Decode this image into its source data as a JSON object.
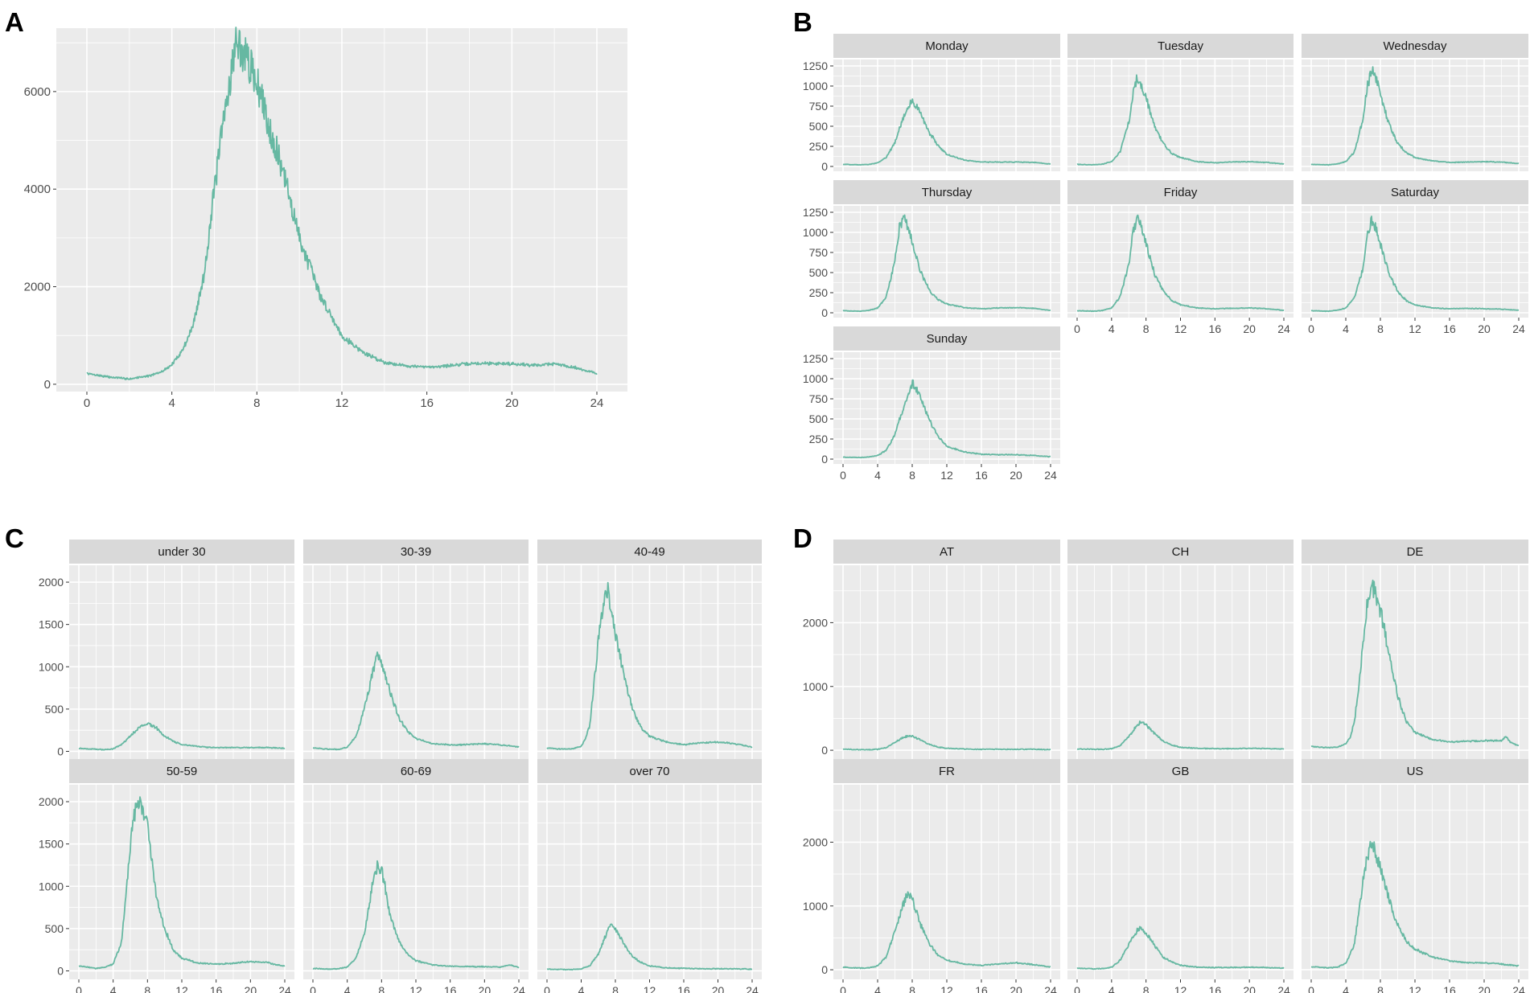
{
  "colors": {
    "line": "#66B8A2",
    "panel_bg": "#EBEBEB",
    "strip_bg": "#D9D9D9",
    "grid": "#FFFFFF",
    "tick_text": "#4D4D4D"
  },
  "chart_data": [
    {
      "id": "A",
      "type": "line",
      "label": "A",
      "x_range": [
        0,
        24
      ],
      "ylim": [
        -150,
        7300
      ],
      "x_ticks": [
        0,
        4,
        8,
        12,
        16,
        20,
        24
      ],
      "y_ticks": [
        0,
        2000,
        4000,
        6000
      ],
      "x_tick_labels": [
        "0",
        "4",
        "8",
        "12",
        "16",
        "20",
        "24"
      ],
      "y_tick_labels": [
        "0",
        "2000",
        "4000",
        "6000"
      ],
      "facets": [
        {
          "title": "",
          "x": [
            0,
            1,
            2,
            3,
            3.5,
            4,
            4.5,
            5,
            5.5,
            6,
            6.5,
            7,
            7.5,
            8,
            8.5,
            9,
            9.5,
            10,
            11,
            12,
            13,
            14,
            15,
            16,
            17,
            18,
            19,
            20,
            21,
            22,
            23,
            24
          ],
          "y": [
            220,
            150,
            110,
            180,
            250,
            400,
            700,
            1200,
            2200,
            4000,
            5600,
            7000,
            6700,
            6200,
            5400,
            4700,
            3900,
            3000,
            1800,
            1000,
            650,
            450,
            380,
            350,
            380,
            420,
            430,
            420,
            390,
            420,
            340,
            220
          ]
        }
      ]
    },
    {
      "id": "B",
      "type": "line",
      "label": "B",
      "x_range": [
        0,
        24
      ],
      "ylim": [
        -60,
        1330
      ],
      "x_ticks": [
        0,
        4,
        8,
        12,
        16,
        20,
        24
      ],
      "y_ticks": [
        0,
        250,
        500,
        750,
        1000,
        1250
      ],
      "x_tick_labels": [
        "0",
        "4",
        "8",
        "12",
        "16",
        "20",
        "24"
      ],
      "y_tick_labels": [
        "0",
        "250",
        "500",
        "750",
        "1000",
        "1250"
      ],
      "facets": [
        {
          "title": "Monday",
          "x": [
            0,
            2,
            3,
            4,
            5,
            6,
            7,
            8,
            9,
            10,
            11,
            12,
            14,
            16,
            18,
            20,
            22,
            24
          ],
          "y": [
            25,
            20,
            25,
            45,
            110,
            300,
            620,
            830,
            650,
            420,
            260,
            150,
            80,
            55,
            55,
            55,
            50,
            30
          ]
        },
        {
          "title": "Tuesday",
          "x": [
            0,
            2,
            3,
            4,
            5,
            6,
            6.5,
            7,
            7.5,
            8,
            9,
            10,
            11,
            12,
            14,
            16,
            18,
            20,
            22,
            24
          ],
          "y": [
            25,
            20,
            30,
            60,
            180,
            550,
            900,
            1120,
            1000,
            850,
            500,
            280,
            160,
            110,
            60,
            45,
            55,
            60,
            50,
            30
          ]
        },
        {
          "title": "Wednesday",
          "x": [
            0,
            2,
            3,
            4,
            5,
            6,
            6.5,
            7,
            7.5,
            8,
            9,
            10,
            11,
            12,
            14,
            16,
            18,
            20,
            22,
            24
          ],
          "y": [
            25,
            20,
            30,
            60,
            180,
            600,
            1000,
            1200,
            1100,
            900,
            520,
            290,
            170,
            110,
            70,
            50,
            55,
            60,
            55,
            35
          ]
        },
        {
          "title": "Thursday",
          "x": [
            0,
            2,
            3,
            4,
            5,
            6,
            6.5,
            7,
            7.5,
            8,
            9,
            10,
            11,
            12,
            14,
            16,
            18,
            20,
            22,
            24
          ],
          "y": [
            25,
            20,
            30,
            60,
            200,
            650,
            1050,
            1200,
            1080,
            880,
            500,
            280,
            160,
            110,
            65,
            50,
            60,
            65,
            55,
            30
          ]
        },
        {
          "title": "Friday",
          "x": [
            0,
            2,
            3,
            4,
            5,
            6,
            6.5,
            7,
            7.5,
            8,
            9,
            10,
            11,
            12,
            14,
            16,
            18,
            20,
            22,
            24
          ],
          "y": [
            25,
            20,
            30,
            60,
            200,
            600,
            1000,
            1180,
            1050,
            870,
            480,
            270,
            150,
            100,
            60,
            50,
            55,
            60,
            50,
            30
          ]
        },
        {
          "title": "Saturday",
          "x": [
            0,
            2,
            3,
            4,
            5,
            6,
            6.5,
            7,
            7.5,
            8,
            9,
            10,
            11,
            12,
            14,
            16,
            18,
            20,
            22,
            24
          ],
          "y": [
            25,
            20,
            30,
            60,
            190,
            560,
            950,
            1150,
            1050,
            860,
            480,
            270,
            150,
            100,
            60,
            50,
            55,
            50,
            45,
            30
          ]
        },
        {
          "title": "Sunday",
          "x": [
            0,
            2,
            3,
            4,
            5,
            6,
            7,
            8,
            8.5,
            9,
            10,
            11,
            12,
            14,
            16,
            18,
            20,
            22,
            24
          ],
          "y": [
            25,
            20,
            25,
            45,
            110,
            300,
            650,
            940,
            880,
            760,
            480,
            280,
            160,
            90,
            60,
            55,
            55,
            45,
            30
          ]
        }
      ]
    },
    {
      "id": "C",
      "type": "line",
      "label": "C",
      "x_range": [
        0,
        24
      ],
      "ylim": [
        -100,
        2200
      ],
      "x_ticks": [
        0,
        4,
        8,
        12,
        16,
        20,
        24
      ],
      "y_ticks": [
        0,
        500,
        1000,
        1500,
        2000
      ],
      "x_tick_labels": [
        "0",
        "4",
        "8",
        "12",
        "16",
        "20",
        "24"
      ],
      "y_tick_labels": [
        "0",
        "500",
        "1000",
        "1500",
        "2000"
      ],
      "facets": [
        {
          "title": "under 30",
          "x": [
            0,
            2,
            3,
            4,
            5,
            6,
            7,
            8,
            9,
            10,
            11,
            12,
            14,
            16,
            18,
            20,
            22,
            24
          ],
          "y": [
            35,
            25,
            20,
            30,
            80,
            180,
            280,
            340,
            280,
            180,
            120,
            80,
            55,
            45,
            45,
            45,
            45,
            35
          ]
        },
        {
          "title": "30-39",
          "x": [
            0,
            2,
            3,
            4,
            5,
            6,
            7,
            7.5,
            8,
            9,
            10,
            11,
            12,
            14,
            16,
            18,
            20,
            22,
            24
          ],
          "y": [
            40,
            25,
            25,
            50,
            170,
            500,
            950,
            1120,
            1050,
            700,
            400,
            240,
            150,
            90,
            75,
            80,
            90,
            75,
            55
          ]
        },
        {
          "title": "40-49",
          "x": [
            0,
            2,
            3,
            4,
            4.5,
            5,
            5.5,
            6,
            6.5,
            7,
            7.5,
            8,
            9,
            10,
            11,
            12,
            14,
            16,
            18,
            20,
            22,
            24
          ],
          "y": [
            40,
            25,
            30,
            60,
            150,
            300,
            800,
            1300,
            1700,
            1950,
            1700,
            1400,
            900,
            500,
            280,
            180,
            110,
            80,
            100,
            110,
            90,
            50
          ]
        },
        {
          "title": "50-59",
          "x": [
            0,
            2,
            3,
            4,
            5,
            5.5,
            6,
            6.5,
            7,
            7.5,
            8,
            8.5,
            9,
            10,
            11,
            12,
            14,
            16,
            18,
            20,
            22,
            23,
            24
          ],
          "y": [
            60,
            30,
            40,
            80,
            350,
            900,
            1500,
            1850,
            2000,
            1900,
            1700,
            1300,
            900,
            500,
            250,
            150,
            90,
            80,
            90,
            110,
            100,
            70,
            60
          ]
        },
        {
          "title": "60-69",
          "x": [
            0,
            2,
            3,
            4,
            5,
            6,
            6.5,
            7,
            7.5,
            8,
            8.5,
            9,
            10,
            11,
            12,
            14,
            16,
            18,
            20,
            22,
            23,
            24
          ],
          "y": [
            30,
            20,
            25,
            45,
            150,
            450,
            750,
            1050,
            1230,
            1200,
            950,
            650,
            350,
            200,
            120,
            70,
            55,
            50,
            50,
            45,
            70,
            40
          ]
        },
        {
          "title": "over 70",
          "x": [
            0,
            2,
            3,
            4,
            5,
            6,
            7,
            7.5,
            8,
            9,
            10,
            11,
            12,
            14,
            16,
            18,
            20,
            22,
            24
          ],
          "y": [
            20,
            15,
            15,
            25,
            60,
            200,
            450,
            560,
            500,
            320,
            170,
            100,
            60,
            35,
            30,
            25,
            25,
            25,
            20
          ]
        }
      ]
    },
    {
      "id": "D",
      "type": "line",
      "label": "D",
      "x_range": [
        0,
        24
      ],
      "ylim": [
        -150,
        2900
      ],
      "x_ticks": [
        0,
        4,
        8,
        12,
        16,
        20,
        24
      ],
      "y_ticks": [
        0,
        1000,
        2000
      ],
      "x_tick_labels": [
        "0",
        "4",
        "8",
        "12",
        "16",
        "20",
        "24"
      ],
      "y_tick_labels": [
        "0",
        "1000",
        "2000"
      ],
      "facets": [
        {
          "title": "AT",
          "x": [
            0,
            2,
            3,
            4,
            5,
            6,
            7,
            8,
            9,
            10,
            11,
            12,
            14,
            16,
            18,
            20,
            22,
            24
          ],
          "y": [
            15,
            10,
            10,
            15,
            40,
            120,
            210,
            220,
            160,
            90,
            50,
            30,
            20,
            15,
            15,
            15,
            15,
            10
          ]
        },
        {
          "title": "CH",
          "x": [
            0,
            2,
            3,
            4,
            5,
            6,
            7,
            7.5,
            8,
            9,
            10,
            11,
            12,
            14,
            16,
            18,
            20,
            22,
            24
          ],
          "y": [
            20,
            15,
            15,
            25,
            70,
            220,
            400,
            450,
            400,
            260,
            140,
            80,
            45,
            30,
            25,
            25,
            30,
            25,
            20
          ]
        },
        {
          "title": "DE",
          "x": [
            0,
            2,
            3,
            4,
            4.5,
            5,
            5.5,
            6,
            6.5,
            7,
            7.5,
            8,
            9,
            10,
            11,
            12,
            14,
            16,
            18,
            20,
            22,
            22.5,
            23,
            24
          ],
          "y": [
            60,
            40,
            50,
            100,
            200,
            450,
            1000,
            1700,
            2300,
            2550,
            2450,
            2200,
            1500,
            850,
            450,
            280,
            170,
            130,
            140,
            150,
            150,
            220,
            130,
            70
          ]
        },
        {
          "title": "FR",
          "x": [
            0,
            2,
            3,
            4,
            5,
            6,
            7,
            7.5,
            8,
            8.5,
            9,
            10,
            11,
            12,
            14,
            16,
            18,
            20,
            22,
            24
          ],
          "y": [
            40,
            25,
            30,
            60,
            200,
            600,
            1050,
            1180,
            1100,
            900,
            700,
            400,
            230,
            150,
            90,
            70,
            90,
            110,
            80,
            45
          ]
        },
        {
          "title": "GB",
          "x": [
            0,
            2,
            3,
            4,
            5,
            6,
            7,
            7.5,
            8,
            9,
            10,
            11,
            12,
            14,
            16,
            18,
            20,
            22,
            24
          ],
          "y": [
            25,
            15,
            20,
            40,
            150,
            400,
            620,
            650,
            580,
            380,
            200,
            120,
            70,
            40,
            35,
            35,
            40,
            35,
            25
          ]
        },
        {
          "title": "US",
          "x": [
            0,
            2,
            3,
            4,
            4.5,
            5,
            5.5,
            6,
            6.5,
            7,
            7.5,
            8,
            9,
            10,
            11,
            12,
            14,
            16,
            18,
            20,
            22,
            24
          ],
          "y": [
            50,
            30,
            40,
            100,
            250,
            400,
            900,
            1400,
            1800,
            2000,
            1800,
            1600,
            1100,
            700,
            450,
            320,
            200,
            140,
            110,
            110,
            90,
            60
          ]
        }
      ]
    }
  ]
}
